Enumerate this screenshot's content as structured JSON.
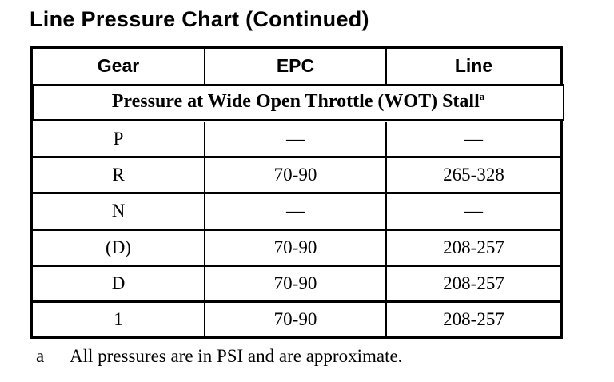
{
  "page": {
    "title": "Line Pressure Chart (Continued)"
  },
  "table": {
    "columns": [
      "Gear",
      "EPC",
      "Line"
    ],
    "wot_row": {
      "label": "Pressure at Wide Open Throttle (WOT) Stall",
      "footnote_marker": "a"
    },
    "rows": [
      {
        "gear": "P",
        "epc": "—",
        "line": "—"
      },
      {
        "gear": "R",
        "epc": "70-90",
        "line": "265-328"
      },
      {
        "gear": "N",
        "epc": "—",
        "line": "—"
      },
      {
        "gear": "(D)",
        "epc": "70-90",
        "line": "208-257"
      },
      {
        "gear": "D",
        "epc": "70-90",
        "line": "208-257"
      },
      {
        "gear": "1",
        "epc": "70-90",
        "line": "208-257"
      }
    ]
  },
  "footnote": {
    "marker": "a",
    "text": "All pressures are in PSI and are approximate."
  },
  "colors": {
    "text": "#000000",
    "background": "#ffffff",
    "border": "#000000"
  }
}
